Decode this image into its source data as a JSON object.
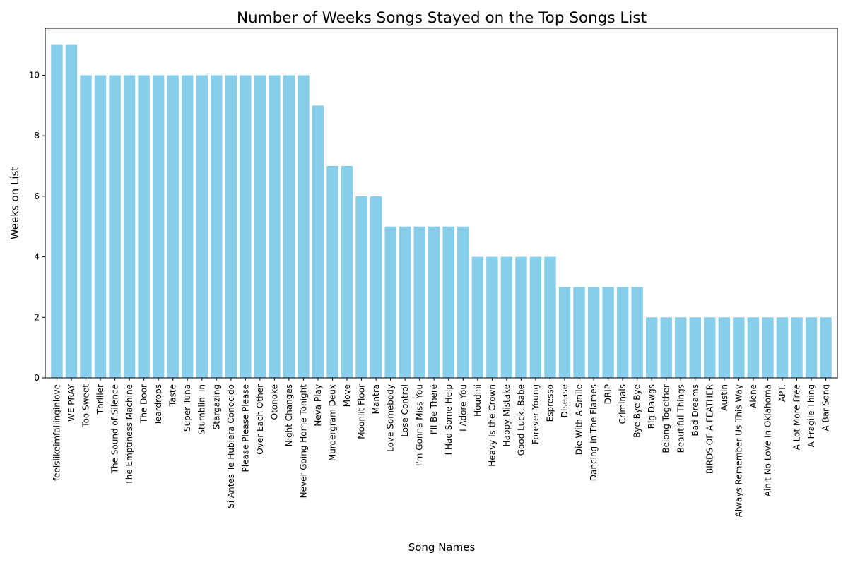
{
  "chart_data": {
    "type": "bar",
    "title": "Number of Weeks Songs Stayed on the Top Songs List",
    "xlabel": "Song Names",
    "ylabel": "Weeks on List",
    "ylim": [
      0,
      11.55
    ],
    "yticks": [
      0,
      2,
      4,
      6,
      8,
      10
    ],
    "grid": false,
    "bar_color": "#87ceeb",
    "categories": [
      "feelslikeimfallinginlove",
      "WE PRAY",
      "Too Sweet",
      "Thriller",
      "The Sound of Silence",
      "The Emptiness Machine",
      "The Door",
      "Teardrops",
      "Taste",
      "Super Tuna",
      "Stumblin' In",
      "Stargazing",
      "Si Antes Te Hubiera Conocido",
      "Please Please Please",
      "Over Each Other",
      "Otonoke",
      "Night Changes",
      "Never Going Home Tonight",
      "Neva Play",
      "Murdergram Deux",
      "Move",
      "Moonlit Floor",
      "Mantra",
      "Love Somebody",
      "Lose Control",
      "I'm Gonna Miss You",
      "I'll Be There",
      "I Had Some Help",
      "I Adore You",
      "Houdini",
      "Heavy Is the Crown",
      "Happy Mistake",
      "Good Luck, Babe",
      "Forever Young",
      "Espresso",
      "Disease",
      "Die With A Smile",
      "Dancing In The Flames",
      "DRIP",
      "Criminals",
      "Bye Bye Bye",
      "Big Dawgs",
      "Belong Together",
      "Beautiful Things",
      "Bad Dreams",
      "BIRDS OF A FEATHER",
      "Austin",
      "Always Remember Us This Way",
      "Alone",
      "Ain't No Love In Oklahoma",
      "APT.",
      "A Lot More Free",
      "A Fragile Thing",
      "A Bar Song"
    ],
    "values": [
      11,
      11,
      10,
      10,
      10,
      10,
      10,
      10,
      10,
      10,
      10,
      10,
      10,
      10,
      10,
      10,
      10,
      10,
      9,
      7,
      7,
      6,
      6,
      5,
      5,
      5,
      5,
      5,
      5,
      4,
      4,
      4,
      4,
      4,
      4,
      3,
      3,
      3,
      3,
      3,
      3,
      2,
      2,
      2,
      2,
      2,
      2,
      2,
      2,
      2,
      2,
      2,
      2,
      2
    ]
  }
}
